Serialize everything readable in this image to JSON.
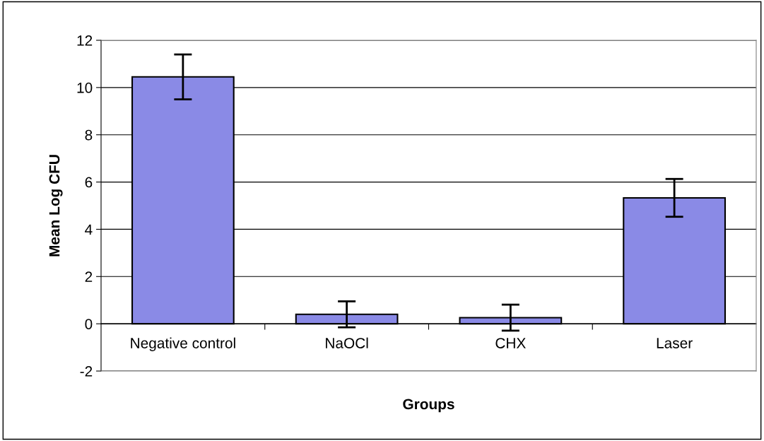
{
  "chart_data": {
    "type": "bar",
    "xlabel": "Groups",
    "ylabel": "Mean Log CFU",
    "categories": [
      "Negative control",
      "NaOCl",
      "CHX",
      "Laser"
    ],
    "values": [
      10.45,
      0.4,
      0.26,
      5.33
    ],
    "errors": [
      0.95,
      0.55,
      0.55,
      0.8
    ],
    "color": "#8a8ae6",
    "ylim": [
      -2,
      12
    ],
    "yticks": [
      -2,
      0,
      2,
      4,
      6,
      8,
      10,
      12
    ],
    "grid": "y"
  }
}
